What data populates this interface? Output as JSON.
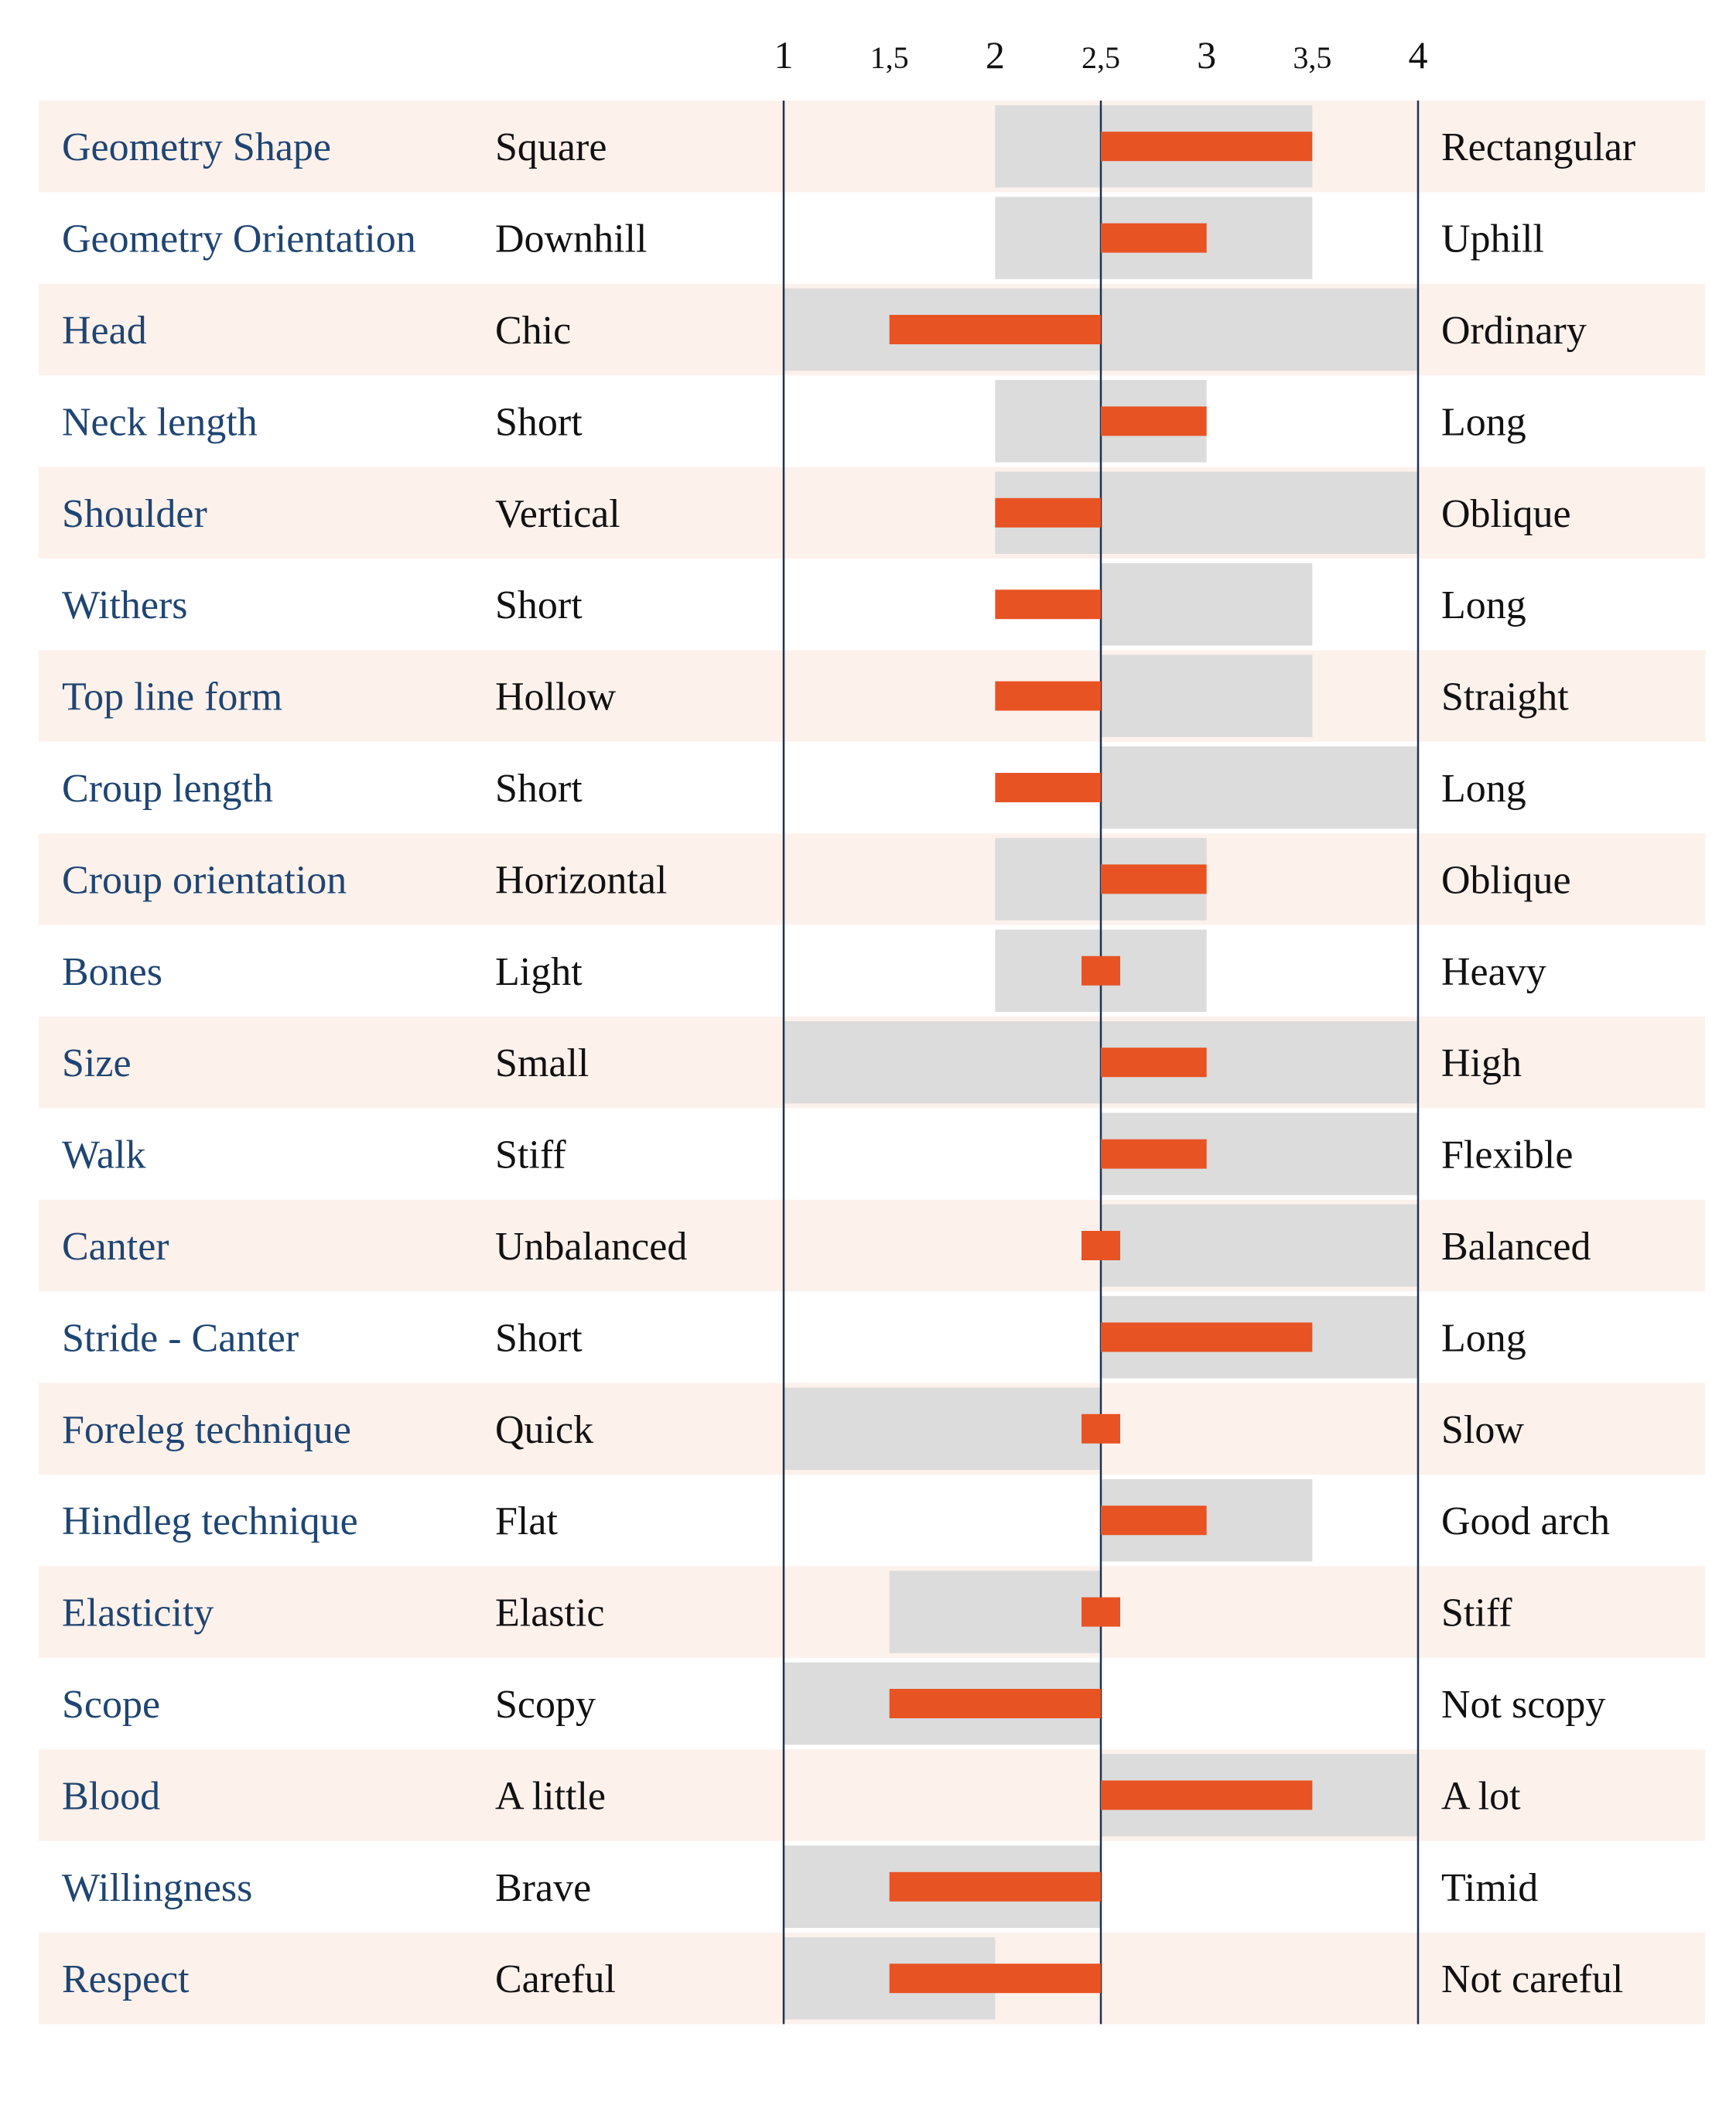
{
  "colors": {
    "row_band": "#fdf1ec",
    "range_bar": "#dcdcdc",
    "value_bar": "#e85324",
    "trait_text": "#1f4572",
    "pole_text": "#111111",
    "axis_line": "#1f3350"
  },
  "chart_data": {
    "type": "bar",
    "orientation": "horizontal",
    "baseline": 2.5,
    "xlim": [
      1,
      4
    ],
    "ticks": [
      {
        "value": 1,
        "label": "1"
      },
      {
        "value": 1.5,
        "label": "1,5"
      },
      {
        "value": 2,
        "label": "2"
      },
      {
        "value": 2.5,
        "label": "2,5"
      },
      {
        "value": 3,
        "label": "3"
      },
      {
        "value": 3.5,
        "label": "3,5"
      },
      {
        "value": 4,
        "label": "4"
      }
    ],
    "rows": [
      {
        "trait": "Geometry Shape",
        "low": "Square",
        "high": "Rectangular",
        "value": 3.5,
        "range": [
          2.0,
          3.5
        ]
      },
      {
        "trait": "Geometry Orientation",
        "low": "Downhill",
        "high": "Uphill",
        "value": 3.0,
        "range": [
          2.0,
          3.5
        ]
      },
      {
        "trait": "Head",
        "low": "Chic",
        "high": "Ordinary",
        "value": 1.5,
        "range": [
          1.0,
          4.0
        ]
      },
      {
        "trait": "Neck length",
        "low": "Short",
        "high": "Long",
        "value": 3.0,
        "range": [
          2.0,
          3.0
        ]
      },
      {
        "trait": "Shoulder",
        "low": "Vertical",
        "high": "Oblique",
        "value": 2.0,
        "range": [
          2.0,
          4.0
        ]
      },
      {
        "trait": "Withers",
        "low": "Short",
        "high": "Long",
        "value": 2.0,
        "range": [
          2.5,
          3.5
        ]
      },
      {
        "trait": "Top line form",
        "low": "Hollow",
        "high": "Straight",
        "value": 2.0,
        "range": [
          2.5,
          3.5
        ]
      },
      {
        "trait": "Croup length",
        "low": "Short",
        "high": "Long",
        "value": 2.0,
        "range": [
          2.5,
          4.0
        ]
      },
      {
        "trait": "Croup orientation",
        "low": "Horizontal",
        "high": "Oblique",
        "value": 3.0,
        "range": [
          2.0,
          3.0
        ]
      },
      {
        "trait": "Bones",
        "low": "Light",
        "high": "Heavy",
        "value": 2.5,
        "range": [
          2.0,
          3.0
        ]
      },
      {
        "trait": "Size",
        "low": "Small",
        "high": "High",
        "value": 3.0,
        "range": [
          1.0,
          4.0
        ]
      },
      {
        "trait": "Walk",
        "low": "Stiff",
        "high": "Flexible",
        "value": 3.0,
        "range": [
          2.5,
          4.0
        ]
      },
      {
        "trait": "Canter",
        "low": "Unbalanced",
        "high": "Balanced",
        "value": 2.5,
        "range": [
          2.5,
          4.0
        ]
      },
      {
        "trait": "Stride - Canter",
        "low": "Short",
        "high": "Long",
        "value": 3.5,
        "range": [
          2.5,
          4.0
        ]
      },
      {
        "trait": "Foreleg technique",
        "low": "Quick",
        "high": "Slow",
        "value": 2.5,
        "range": [
          1.0,
          2.5
        ]
      },
      {
        "trait": "Hindleg technique",
        "low": "Flat",
        "high": "Good arch",
        "value": 3.0,
        "range": [
          2.5,
          3.5
        ]
      },
      {
        "trait": "Elasticity",
        "low": "Elastic",
        "high": "Stiff",
        "value": 2.5,
        "range": [
          1.5,
          2.5
        ]
      },
      {
        "trait": "Scope",
        "low": "Scopy",
        "high": "Not scopy",
        "value": 1.5,
        "range": [
          1.0,
          2.5
        ]
      },
      {
        "trait": "Blood",
        "low": "A little",
        "high": "A lot",
        "value": 3.5,
        "range": [
          2.5,
          4.0
        ]
      },
      {
        "trait": "Willingness",
        "low": "Brave",
        "high": "Timid",
        "value": 1.5,
        "range": [
          1.0,
          2.5
        ]
      },
      {
        "trait": "Respect",
        "low": "Careful",
        "high": "Not careful",
        "value": 1.5,
        "range": [
          1.0,
          2.0
        ]
      }
    ]
  }
}
